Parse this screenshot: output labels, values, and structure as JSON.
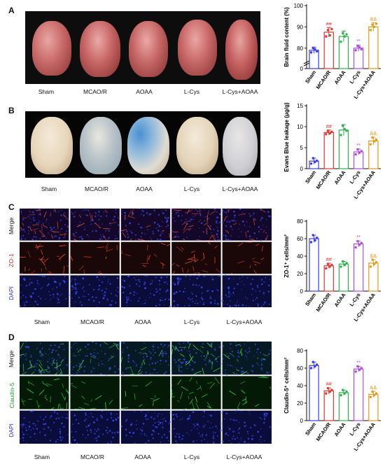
{
  "panels": [
    {
      "letter": "A"
    },
    {
      "letter": "B"
    },
    {
      "letter": "C"
    },
    {
      "letter": "D"
    }
  ],
  "groups": [
    "Sham",
    "MCAO/R",
    "AOAA",
    "L-Cys",
    "L-Cys+AOAA"
  ],
  "row_labels": {
    "c": [
      "Merge",
      "ZO-1",
      "DAPI"
    ],
    "d": [
      "Merge",
      "Claudin-5",
      "DAPI"
    ]
  },
  "colors": {
    "Sham": "#3a3df0",
    "MCAO/R": "#e8322c",
    "AOAA": "#2fb24a",
    "L-Cys": "#b04be0",
    "L-Cys+AOAA": "#e39a1a"
  },
  "chart_data": [
    {
      "type": "bar",
      "panel": "A",
      "ylabel": "Brain fluid content (%)",
      "categories": [
        "Sham",
        "MCAO/R",
        "AOAA",
        "L-Cys",
        "L-Cys+AOAA"
      ],
      "values": [
        79,
        87.5,
        85.5,
        80,
        90
      ],
      "errors": [
        1.5,
        2.2,
        2.5,
        1.5,
        2
      ],
      "ylim": [
        75,
        100
      ],
      "yticks": [
        80,
        90,
        100,
        0
      ],
      "axis_break": true,
      "annotations": [
        "",
        "##",
        "",
        "**",
        "&&"
      ],
      "points": [
        [
          78,
          80,
          79.5,
          78.5
        ],
        [
          85.5,
          88.5,
          86,
          89
        ],
        [
          83,
          87,
          85.5,
          86.5
        ],
        [
          79,
          81,
          80.5,
          79.5
        ],
        [
          88.5,
          91,
          90,
          91.5
        ]
      ]
    },
    {
      "type": "bar",
      "panel": "B",
      "ylabel": "Evans Blue leakage (μg/g)",
      "categories": [
        "Sham",
        "MCAO/R",
        "AOAA",
        "L-Cys",
        "L-Cys+AOAA"
      ],
      "values": [
        1.8,
        8.6,
        9.2,
        4.0,
        6.6
      ],
      "errors": [
        0.7,
        0.6,
        1.3,
        0.7,
        0.9
      ],
      "ylim": [
        0,
        15
      ],
      "yticks": [
        0,
        5,
        10,
        15
      ],
      "annotations": [
        "",
        "##",
        "",
        "**",
        "&&"
      ],
      "points": [
        [
          1.2,
          2.5,
          1.6,
          1.9
        ],
        [
          8.2,
          9.0,
          8.4,
          8.8
        ],
        [
          8.0,
          10.2,
          9.4,
          9.0
        ],
        [
          3.4,
          4.6,
          3.8,
          4.2
        ],
        [
          5.8,
          7.4,
          6.5,
          6.9
        ]
      ]
    },
    {
      "type": "bar",
      "panel": "C",
      "ylabel": "ZO-1⁺ cells/mm²",
      "categories": [
        "Sham",
        "MCAO/R",
        "AOAA",
        "L-Cys",
        "L-Cys+AOAA"
      ],
      "values": [
        60,
        29,
        31,
        54,
        32
      ],
      "errors": [
        4,
        3,
        3,
        3.5,
        4
      ],
      "ylim": [
        0,
        80
      ],
      "yticks": [
        0,
        20,
        40,
        60,
        80
      ],
      "annotations": [
        "",
        "##",
        "",
        "**",
        "&&"
      ],
      "points": [
        [
          56,
          64,
          58,
          61
        ],
        [
          26,
          31,
          28,
          30
        ],
        [
          28,
          34,
          30,
          32
        ],
        [
          50,
          57,
          53,
          55
        ],
        [
          28,
          36,
          31,
          33
        ]
      ]
    },
    {
      "type": "bar",
      "panel": "D",
      "ylabel": "Claudin-5⁺ cells/mm²",
      "categories": [
        "Sham",
        "MCAO/R",
        "AOAA",
        "L-Cys",
        "L-Cys+AOAA"
      ],
      "values": [
        63,
        34,
        32,
        59,
        30
      ],
      "errors": [
        4,
        3.5,
        3,
        3,
        3.5
      ],
      "ylim": [
        0,
        80
      ],
      "yticks": [
        0,
        20,
        40,
        60,
        80
      ],
      "annotations": [
        "",
        "##",
        "",
        "**",
        "&&"
      ],
      "points": [
        [
          60,
          67,
          62,
          64
        ],
        [
          31,
          37,
          33,
          35
        ],
        [
          29,
          35,
          31,
          33
        ],
        [
          56,
          62,
          58,
          60
        ],
        [
          27,
          33,
          29,
          31
        ]
      ]
    }
  ]
}
